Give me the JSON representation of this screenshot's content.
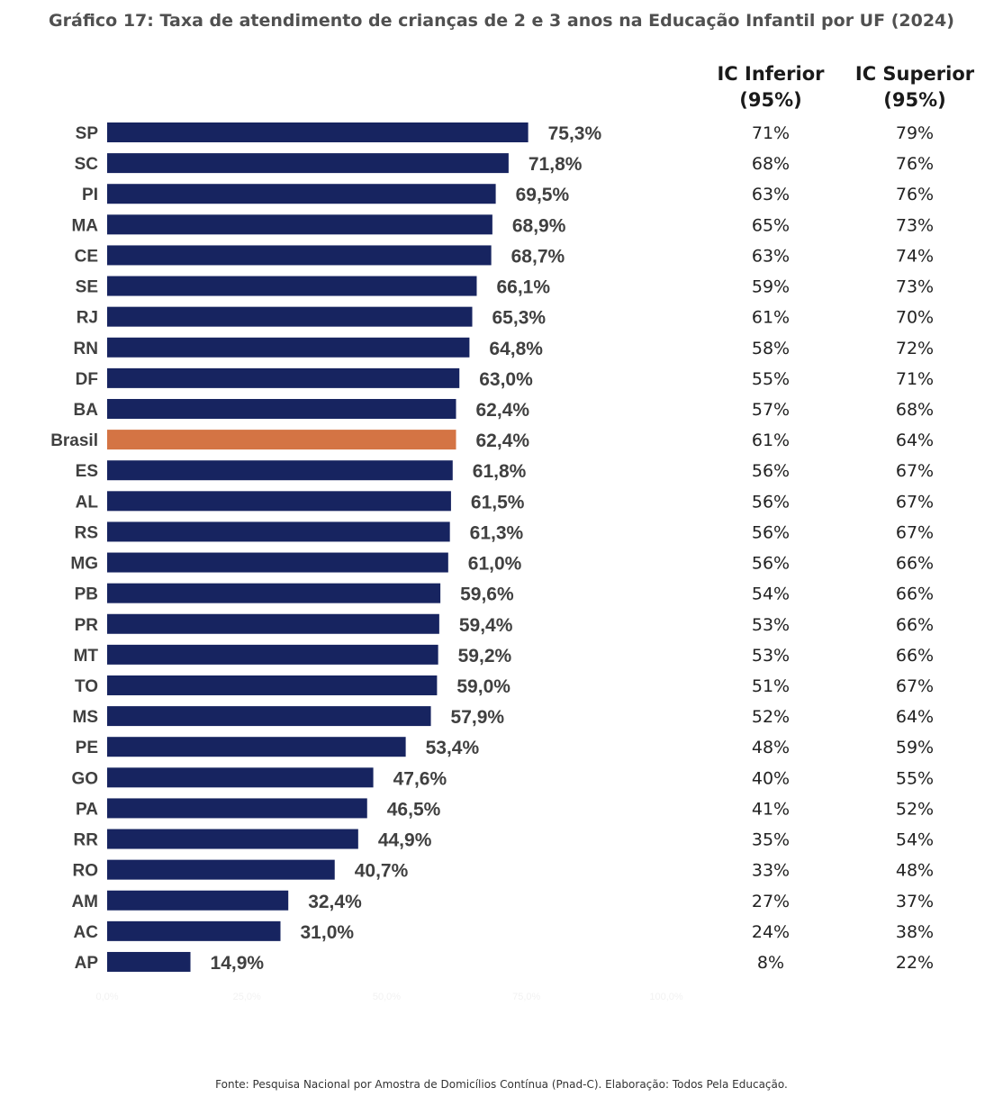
{
  "title": "Gráfico 17: Taxa de atendimento de crianças de 2 e 3 anos na Educação Infantil por UF (2024)",
  "source": "Fonte: Pesquisa Nacional por Amostra de Domicílios Contínua (Pnad-C). Elaboração: Todos Pela Educação.",
  "colors": {
    "bar": "#172460",
    "highlight": "#D47444"
  },
  "chart_data": {
    "type": "bar",
    "orientation": "horizontal",
    "title": "Gráfico 17: Taxa de atendimento de crianças de 2 e 3 anos na Educação Infantil por UF (2024)",
    "xlim": [
      0,
      100
    ],
    "x_ticks": [
      "0,0%",
      "25,0%",
      "50,0%",
      "75,0%",
      "100,0%"
    ],
    "grid": false,
    "highlight_category": "Brasil",
    "categories": [
      "SP",
      "SC",
      "PI",
      "MA",
      "CE",
      "SE",
      "RJ",
      "RN",
      "DF",
      "BA",
      "Brasil",
      "ES",
      "AL",
      "RS",
      "MG",
      "PB",
      "PR",
      "MT",
      "TO",
      "MS",
      "PE",
      "GO",
      "PA",
      "RR",
      "RO",
      "AM",
      "AC",
      "AP"
    ],
    "values": [
      75.3,
      71.8,
      69.5,
      68.9,
      68.7,
      66.1,
      65.3,
      64.8,
      63.0,
      62.4,
      62.4,
      61.8,
      61.5,
      61.3,
      61.0,
      59.6,
      59.4,
      59.2,
      59.0,
      57.9,
      53.4,
      47.6,
      46.5,
      44.9,
      40.7,
      32.4,
      31.0,
      14.9
    ],
    "value_labels": [
      "75,3%",
      "71,8%",
      "69,5%",
      "68,9%",
      "68,7%",
      "66,1%",
      "65,3%",
      "64,8%",
      "63,0%",
      "62,4%",
      "62,4%",
      "61,8%",
      "61,5%",
      "61,3%",
      "61,0%",
      "59,6%",
      "59,4%",
      "59,2%",
      "59,0%",
      "57,9%",
      "53,4%",
      "47,6%",
      "46,5%",
      "44,9%",
      "40,7%",
      "32,4%",
      "31,0%",
      "14,9%"
    ],
    "ci_lower_header": [
      "IC Inferior",
      "(95%)"
    ],
    "ci_upper_header": [
      "IC Superior",
      "(95%)"
    ],
    "ci_lower": [
      "71%",
      "68%",
      "63%",
      "65%",
      "63%",
      "59%",
      "61%",
      "58%",
      "55%",
      "57%",
      "61%",
      "56%",
      "56%",
      "56%",
      "56%",
      "54%",
      "53%",
      "53%",
      "51%",
      "52%",
      "48%",
      "40%",
      "41%",
      "35%",
      "33%",
      "27%",
      "24%",
      "8%"
    ],
    "ci_upper": [
      "79%",
      "76%",
      "76%",
      "73%",
      "74%",
      "73%",
      "70%",
      "72%",
      "71%",
      "68%",
      "64%",
      "67%",
      "67%",
      "67%",
      "66%",
      "66%",
      "66%",
      "66%",
      "67%",
      "64%",
      "59%",
      "55%",
      "52%",
      "54%",
      "48%",
      "37%",
      "38%",
      "22%"
    ]
  }
}
